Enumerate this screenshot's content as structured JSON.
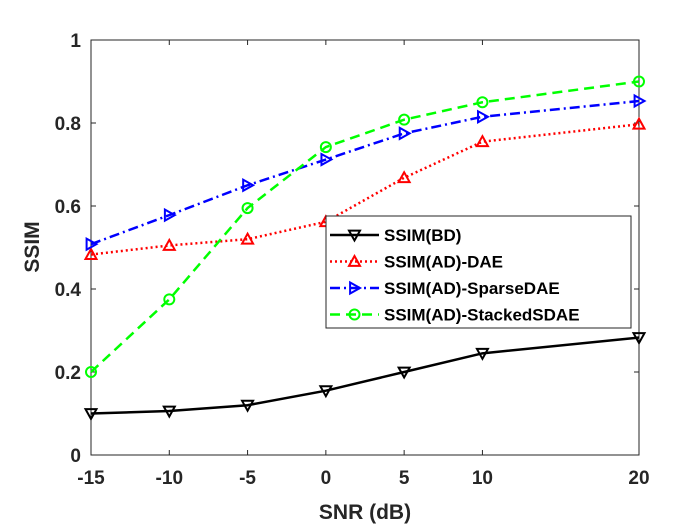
{
  "chart_data": {
    "type": "line",
    "title": "",
    "xlabel": "SNR (dB)",
    "ylabel": "SSIM",
    "x": [
      -15,
      -10,
      -5,
      0,
      5,
      10,
      20
    ],
    "xticks": [
      -15,
      -10,
      -5,
      0,
      5,
      10,
      20
    ],
    "xtick_labels": [
      "-15",
      "-10",
      "-5",
      "0",
      "5",
      "10",
      "20"
    ],
    "yticks": [
      0,
      0.2,
      0.4,
      0.6,
      0.8,
      1
    ],
    "ytick_labels": [
      "0",
      "0.2",
      "0.4",
      "0.6",
      "0.8",
      "1"
    ],
    "xlim": [
      -15,
      20
    ],
    "ylim": [
      0,
      1
    ],
    "grid": false,
    "legend_position": "center-right",
    "series": [
      {
        "name": "SSIM(BD)",
        "label": "SSIM(BD)",
        "color": "#000000",
        "line_style": "solid",
        "marker": "triangle-down",
        "values": [
          0.1,
          0.106,
          0.12,
          0.155,
          0.2,
          0.245,
          0.283
        ]
      },
      {
        "name": "SSIM(AD)-DAE",
        "label": "SSIM(AD)-DAE",
        "color": "#ff0000",
        "line_style": "dotted",
        "marker": "triangle-up",
        "values": [
          0.483,
          0.505,
          0.52,
          0.562,
          0.668,
          0.755,
          0.797
        ]
      },
      {
        "name": "SSIM(AD)-SparseDAE",
        "label": "SSIM(AD)-SparseDAE",
        "color": "#0000ff",
        "line_style": "dashdot",
        "marker": "triangle-right",
        "values": [
          0.508,
          0.578,
          0.65,
          0.712,
          0.775,
          0.815,
          0.853
        ]
      },
      {
        "name": "SSIM(AD)-StackedSDAE",
        "label": "SSIM(AD)-StackedSDAE",
        "color": "#00ff00",
        "line_style": "dashed",
        "marker": "circle",
        "values": [
          0.2,
          0.375,
          0.595,
          0.742,
          0.808,
          0.85,
          0.9
        ]
      }
    ]
  }
}
